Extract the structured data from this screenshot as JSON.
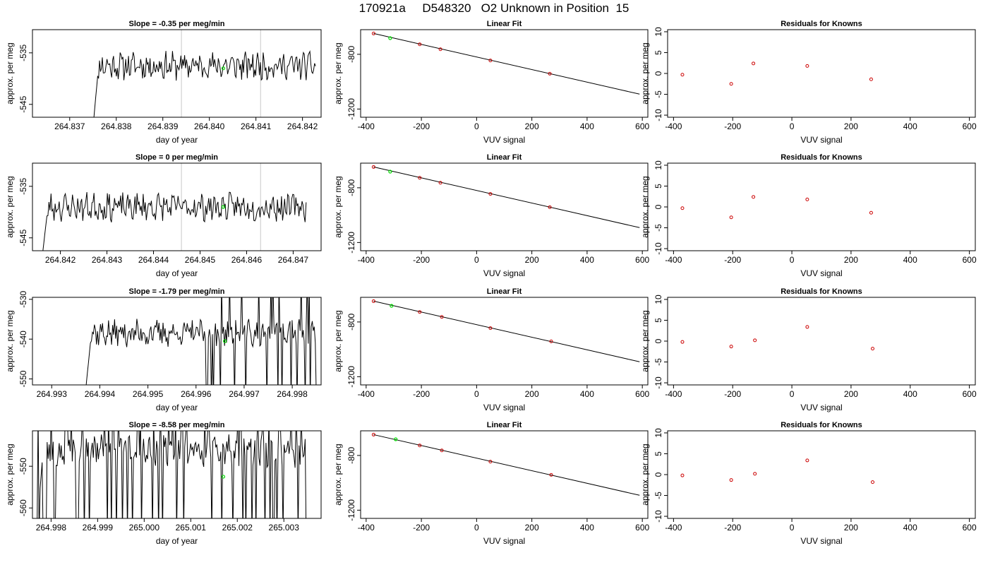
{
  "title": "170921a     D548320   O2 Unknown in Position  15",
  "colors": {
    "trace": "#000000",
    "marker": "#00dd00",
    "residual": "#cc0000",
    "gridline": "#c8c8c8"
  },
  "chart_data": [
    {
      "type": "line",
      "panel": "slope",
      "row": 0,
      "title": "Slope =  -0.35  per meg/min",
      "xlabel": "day of year",
      "ylabel": "approx. per meg",
      "xlim": [
        264.8362,
        264.8424
      ],
      "ylim": [
        -547.5,
        -530.5
      ],
      "xticks": [
        "264.837",
        "264.838",
        "264.839",
        "264.840",
        "264.841",
        "264.842"
      ],
      "xtick_values": [
        264.837,
        264.838,
        264.839,
        264.84,
        264.841,
        264.842
      ],
      "yticks": [
        "-535",
        "-545"
      ],
      "ytick_values": [
        -535,
        -545
      ],
      "vlines": [
        264.8394,
        264.8411
      ],
      "marker": {
        "x": 264.8403,
        "y": -538.0
      },
      "trace": {
        "x_start": 264.8375,
        "x_end": 264.8423,
        "n": 240,
        "center": -537.5,
        "amp": 1.6,
        "seed": 11,
        "spike": 0
      }
    },
    {
      "type": "scatter",
      "panel": "fit",
      "row": 0,
      "title": "Linear Fit",
      "xlabel": "VUV signal",
      "ylabel": "approx. per meg",
      "xlim": [
        -420,
        620
      ],
      "ylim": [
        -1260,
        -620
      ],
      "xticks": [
        "-400",
        "-200",
        "0",
        "200",
        "400",
        "600"
      ],
      "xtick_values": [
        -400,
        -200,
        0,
        200,
        400,
        600
      ],
      "yticks": [
        "-800",
        "-1200"
      ],
      "ytick_values": [
        -800,
        -1200
      ],
      "points": [
        {
          "x": -373,
          "y": -648
        },
        {
          "x": -206,
          "y": -727
        },
        {
          "x": -131,
          "y": -763
        },
        {
          "x": 50,
          "y": -845
        },
        {
          "x": 265,
          "y": -942
        }
      ],
      "unknown": {
        "x": -313,
        "y": -682
      },
      "fit_line": {
        "x": [
          -373,
          590
        ],
        "y": [
          -648,
          -1091
        ]
      }
    },
    {
      "type": "scatter",
      "panel": "residuals",
      "row": 0,
      "title": "Residuals for Knowns",
      "xlabel": "VUV signal",
      "ylabel": "approx. per meg",
      "xlim": [
        -420,
        620
      ],
      "ylim": [
        -10.5,
        10.5
      ],
      "xticks": [
        "-400",
        "-200",
        "0",
        "200",
        "400",
        "600"
      ],
      "xtick_values": [
        -400,
        -200,
        0,
        200,
        400,
        600
      ],
      "yticks": [
        "-10",
        "-5",
        "0",
        "5",
        "10"
      ],
      "ytick_values": [
        -10,
        -5,
        0,
        5,
        10
      ],
      "points": [
        {
          "x": -370,
          "y": -0.3
        },
        {
          "x": -205,
          "y": -2.5
        },
        {
          "x": -130,
          "y": 2.4
        },
        {
          "x": 52,
          "y": 1.8
        },
        {
          "x": 268,
          "y": -1.4
        }
      ]
    },
    {
      "type": "line",
      "panel": "slope",
      "row": 1,
      "title": "Slope =  0  per meg/min",
      "xlabel": "day of year",
      "ylabel": "approx. per meg",
      "xlim": [
        264.8414,
        264.8476
      ],
      "ylim": [
        -547.5,
        -530.5
      ],
      "xticks": [
        "264.842",
        "264.843",
        "264.844",
        "264.845",
        "264.846",
        "264.847"
      ],
      "xtick_values": [
        264.842,
        264.843,
        264.844,
        264.845,
        264.846,
        264.847
      ],
      "yticks": [
        "-535",
        "-545"
      ],
      "ytick_values": [
        -535,
        -545
      ],
      "vlines": [
        264.8446,
        264.8463
      ],
      "marker": {
        "x": 264.8455,
        "y": -539.0
      },
      "trace": {
        "x_start": 264.8416,
        "x_end": 264.8473,
        "n": 260,
        "center": -539.0,
        "amp": 1.6,
        "seed": 23,
        "spike": 0
      }
    },
    {
      "type": "scatter",
      "panel": "fit",
      "row": 1,
      "title": "Linear Fit",
      "xlabel": "VUV signal",
      "ylabel": "approx. per meg",
      "xlim": [
        -420,
        620
      ],
      "ylim": [
        -1260,
        -620
      ],
      "xticks": [
        "-400",
        "-200",
        "0",
        "200",
        "400",
        "600"
      ],
      "xtick_values": [
        -400,
        -200,
        0,
        200,
        400,
        600
      ],
      "yticks": [
        "-800",
        "-1200"
      ],
      "ytick_values": [
        -800,
        -1200
      ],
      "points": [
        {
          "x": -373,
          "y": -648
        },
        {
          "x": -206,
          "y": -727
        },
        {
          "x": -131,
          "y": -763
        },
        {
          "x": 50,
          "y": -845
        },
        {
          "x": 265,
          "y": -942
        }
      ],
      "unknown": {
        "x": -313,
        "y": -682
      },
      "fit_line": {
        "x": [
          -373,
          590
        ],
        "y": [
          -648,
          -1091
        ]
      }
    },
    {
      "type": "scatter",
      "panel": "residuals",
      "row": 1,
      "title": "Residuals for Knowns",
      "xlabel": "VUV signal",
      "ylabel": "approx. per meg",
      "xlim": [
        -420,
        620
      ],
      "ylim": [
        -10.5,
        10.5
      ],
      "xticks": [
        "-400",
        "-200",
        "0",
        "200",
        "400",
        "600"
      ],
      "xtick_values": [
        -400,
        -200,
        0,
        200,
        400,
        600
      ],
      "yticks": [
        "-10",
        "-5",
        "0",
        "5",
        "10"
      ],
      "ytick_values": [
        -10,
        -5,
        0,
        5,
        10
      ],
      "points": [
        {
          "x": -370,
          "y": -0.3
        },
        {
          "x": -205,
          "y": -2.5
        },
        {
          "x": -130,
          "y": 2.4
        },
        {
          "x": 52,
          "y": 1.8
        },
        {
          "x": 268,
          "y": -1.4
        }
      ]
    },
    {
      "type": "line",
      "panel": "slope",
      "row": 2,
      "title": "Slope =  -1.79  per meg/min",
      "xlabel": "day of year",
      "ylabel": "approx. per meg",
      "xlim": [
        264.9926,
        264.9986
      ],
      "ylim": [
        -551.5,
        -529.5
      ],
      "xticks": [
        "264.993",
        "264.994",
        "264.995",
        "264.996",
        "264.997",
        "264.998"
      ],
      "xtick_values": [
        264.993,
        264.994,
        264.995,
        264.996,
        264.997,
        264.998
      ],
      "yticks": [
        "-530",
        "-540",
        "-550"
      ],
      "ytick_values": [
        -530,
        -540,
        -550
      ],
      "vlines": [],
      "marker": {
        "x": 264.9966,
        "y": -540.5
      },
      "trace": {
        "x_start": 264.9937,
        "x_end": 264.9985,
        "n": 230,
        "center": -538.5,
        "amp": 2.0,
        "seed": 37,
        "spike": 1
      }
    },
    {
      "type": "scatter",
      "panel": "fit",
      "row": 2,
      "title": "Linear Fit",
      "xlabel": "VUV signal",
      "ylabel": "approx. per meg",
      "xlim": [
        -420,
        620
      ],
      "ylim": [
        -1260,
        -620
      ],
      "xticks": [
        "-400",
        "-200",
        "0",
        "200",
        "400",
        "600"
      ],
      "xtick_values": [
        -400,
        -200,
        0,
        200,
        400,
        600
      ],
      "yticks": [
        "-800",
        "-1200"
      ],
      "ytick_values": [
        -800,
        -1200
      ],
      "points": [
        {
          "x": -373,
          "y": -648
        },
        {
          "x": -206,
          "y": -727
        },
        {
          "x": -126,
          "y": -763
        },
        {
          "x": 50,
          "y": -845
        },
        {
          "x": 270,
          "y": -942
        }
      ],
      "unknown": {
        "x": -308,
        "y": -682
      },
      "fit_line": {
        "x": [
          -373,
          590
        ],
        "y": [
          -648,
          -1091
        ]
      }
    },
    {
      "type": "scatter",
      "panel": "residuals",
      "row": 2,
      "title": "Residuals for Knowns",
      "xlabel": "VUV signal",
      "ylabel": "approx. per meg",
      "xlim": [
        -420,
        620
      ],
      "ylim": [
        -10.5,
        10.5
      ],
      "xticks": [
        "-400",
        "-200",
        "0",
        "200",
        "400",
        "600"
      ],
      "xtick_values": [
        -400,
        -200,
        0,
        200,
        400,
        600
      ],
      "yticks": [
        "-10",
        "-5",
        "0",
        "5",
        "10"
      ],
      "ytick_values": [
        -10,
        -5,
        0,
        5,
        10
      ],
      "points": [
        {
          "x": -370,
          "y": -0.2
        },
        {
          "x": -205,
          "y": -1.3
        },
        {
          "x": -125,
          "y": 0.2
        },
        {
          "x": 52,
          "y": 3.4
        },
        {
          "x": 273,
          "y": -1.8
        }
      ]
    },
    {
      "type": "line",
      "panel": "slope",
      "row": 3,
      "title": "Slope =  -8.58  per meg/min",
      "xlabel": "day of year",
      "ylabel": "approx. per meg",
      "xlim": [
        264.9976,
        265.0038
      ],
      "ylim": [
        -562.5,
        -541.5
      ],
      "xticks": [
        "264.998",
        "264.999",
        "265.000",
        "265.001",
        "265.002",
        "265.003"
      ],
      "xtick_values": [
        264.998,
        264.999,
        265.0,
        265.001,
        265.002,
        265.003
      ],
      "yticks": [
        "-550",
        "-560"
      ],
      "ytick_values": [
        -550,
        -560
      ],
      "vlines": [],
      "marker": {
        "x": 265.0017,
        "y": -552.5
      },
      "trace": {
        "x_start": 264.9977,
        "x_end": 265.0035,
        "n": 270,
        "center": -546.0,
        "amp": 2.5,
        "seed": 53,
        "spike": 2
      }
    },
    {
      "type": "scatter",
      "panel": "fit",
      "row": 3,
      "title": "Linear Fit",
      "xlabel": "VUV signal",
      "ylabel": "approx. per meg",
      "xlim": [
        -420,
        620
      ],
      "ylim": [
        -1260,
        -620
      ],
      "xticks": [
        "-400",
        "-200",
        "0",
        "200",
        "400",
        "600"
      ],
      "xtick_values": [
        -400,
        -200,
        0,
        200,
        400,
        600
      ],
      "yticks": [
        "-800",
        "-1200"
      ],
      "ytick_values": [
        -800,
        -1200
      ],
      "points": [
        {
          "x": -373,
          "y": -648
        },
        {
          "x": -206,
          "y": -727
        },
        {
          "x": -126,
          "y": -763
        },
        {
          "x": 50,
          "y": -845
        },
        {
          "x": 270,
          "y": -942
        }
      ],
      "unknown": {
        "x": -293,
        "y": -682
      },
      "fit_line": {
        "x": [
          -373,
          590
        ],
        "y": [
          -648,
          -1091
        ]
      }
    },
    {
      "type": "scatter",
      "panel": "residuals",
      "row": 3,
      "title": "Residuals for Knowns",
      "xlabel": "VUV signal",
      "ylabel": "approx. per meg",
      "xlim": [
        -420,
        620
      ],
      "ylim": [
        -10.5,
        10.5
      ],
      "xticks": [
        "-400",
        "-200",
        "0",
        "200",
        "400",
        "600"
      ],
      "xtick_values": [
        -400,
        -200,
        0,
        200,
        400,
        600
      ],
      "yticks": [
        "-10",
        "-5",
        "0",
        "5",
        "10"
      ],
      "ytick_values": [
        -10,
        -5,
        0,
        5,
        10
      ],
      "points": [
        {
          "x": -370,
          "y": -0.2
        },
        {
          "x": -205,
          "y": -1.3
        },
        {
          "x": -125,
          "y": 0.2
        },
        {
          "x": 52,
          "y": 3.4
        },
        {
          "x": 273,
          "y": -1.8
        }
      ]
    }
  ]
}
